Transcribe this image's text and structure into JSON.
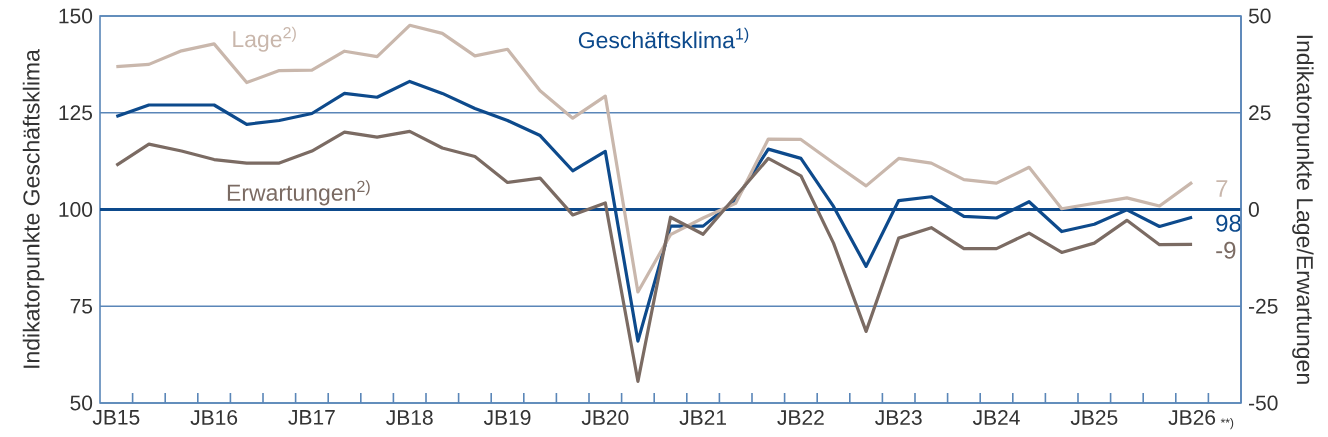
{
  "chart_data": {
    "type": "line",
    "xlabel": null,
    "ylabel": "Indikatorpunkte Geschäftsklima",
    "y2label": "Indikatorpunkte Lage/Erwartungen",
    "categories": [
      "JB15",
      null,
      null,
      "JB16",
      null,
      null,
      "JB17",
      null,
      null,
      "JB18",
      null,
      null,
      "JB19",
      null,
      null,
      "JB20",
      null,
      null,
      "JB21",
      null,
      null,
      "JB22",
      null,
      null,
      "JB23",
      null,
      null,
      "JB24",
      null,
      null,
      "JB25",
      null,
      null,
      "JB26"
    ],
    "ylim": [
      50,
      150
    ],
    "yticks": [
      50,
      75,
      100,
      125,
      150
    ],
    "y2lim": [
      -50,
      50
    ],
    "y2ticks": [
      -50,
      -25,
      0,
      25,
      50
    ],
    "grid": "y",
    "ref_lines": [
      {
        "axis": "y",
        "value": 100,
        "color": "#0d4a8c"
      }
    ],
    "annotations": [
      "**)"
    ],
    "series": [
      {
        "name": "Lage$^{2)}$",
        "axis": "y2",
        "color": "#c9b7ac",
        "values": [
          36.9,
          37.5,
          41.0,
          42.8,
          32.8,
          35.9,
          36.0,
          40.9,
          39.5,
          47.6,
          45.5,
          39.7,
          41.4,
          30.7,
          23.6,
          29.3,
          -21.3,
          -6.5,
          -2.2,
          1.6,
          18.2,
          18.1,
          12.0,
          6.1,
          13.2,
          12.0,
          7.7,
          6.8,
          10.9,
          0.2,
          1.6,
          3.0,
          0.9,
          7
        ],
        "value_labels": [
          null,
          null,
          null,
          null,
          null,
          null,
          null,
          null,
          null,
          null,
          null,
          null,
          null,
          null,
          null,
          null,
          null,
          null,
          null,
          null,
          null,
          null,
          null,
          null,
          null,
          null,
          null,
          null,
          null,
          null,
          null,
          null,
          null,
          "7"
        ]
      },
      {
        "name": "Geschäftsklima$^{1)}$",
        "axis": "y",
        "color": "#0d4a8c",
        "values": [
          124.0,
          127.0,
          127.0,
          127.0,
          122.0,
          123.0,
          124.8,
          130.0,
          129.0,
          133.1,
          130.0,
          126.1,
          123.0,
          119.1,
          110.0,
          115.0,
          66.0,
          95.7,
          95.7,
          102.5,
          115.6,
          113.2,
          100.8,
          85.3,
          102.3,
          103.3,
          98.2,
          97.8,
          102.0,
          94.3,
          96.2,
          99.9,
          95.6,
          98
        ],
        "value_labels": [
          null,
          null,
          null,
          null,
          null,
          null,
          null,
          null,
          null,
          null,
          null,
          null,
          null,
          null,
          null,
          null,
          null,
          null,
          null,
          null,
          null,
          null,
          null,
          null,
          null,
          null,
          null,
          null,
          null,
          null,
          null,
          null,
          null,
          "98"
        ]
      },
      {
        "name": "Erwartungen$^{2)}$",
        "axis": "y2",
        "color": "#7b6b63",
        "values": [
          11.4,
          16.9,
          15.1,
          12.9,
          12.0,
          12.0,
          15.1,
          20.0,
          18.7,
          20.2,
          15.9,
          13.7,
          7.0,
          8.1,
          -1.4,
          1.7,
          -44.4,
          -2.0,
          -6.4,
          3.4,
          13.2,
          8.7,
          -8.7,
          -31.5,
          -7.4,
          -4.7,
          -10.1,
          -10.1,
          -6.1,
          -11.1,
          -8.7,
          -2.8,
          -9.1,
          -9
        ],
        "value_labels": [
          null,
          null,
          null,
          null,
          null,
          null,
          null,
          null,
          null,
          null,
          null,
          null,
          null,
          null,
          null,
          null,
          null,
          null,
          null,
          null,
          null,
          null,
          null,
          null,
          null,
          null,
          null,
          null,
          null,
          null,
          null,
          null,
          null,
          "-9"
        ]
      }
    ]
  }
}
